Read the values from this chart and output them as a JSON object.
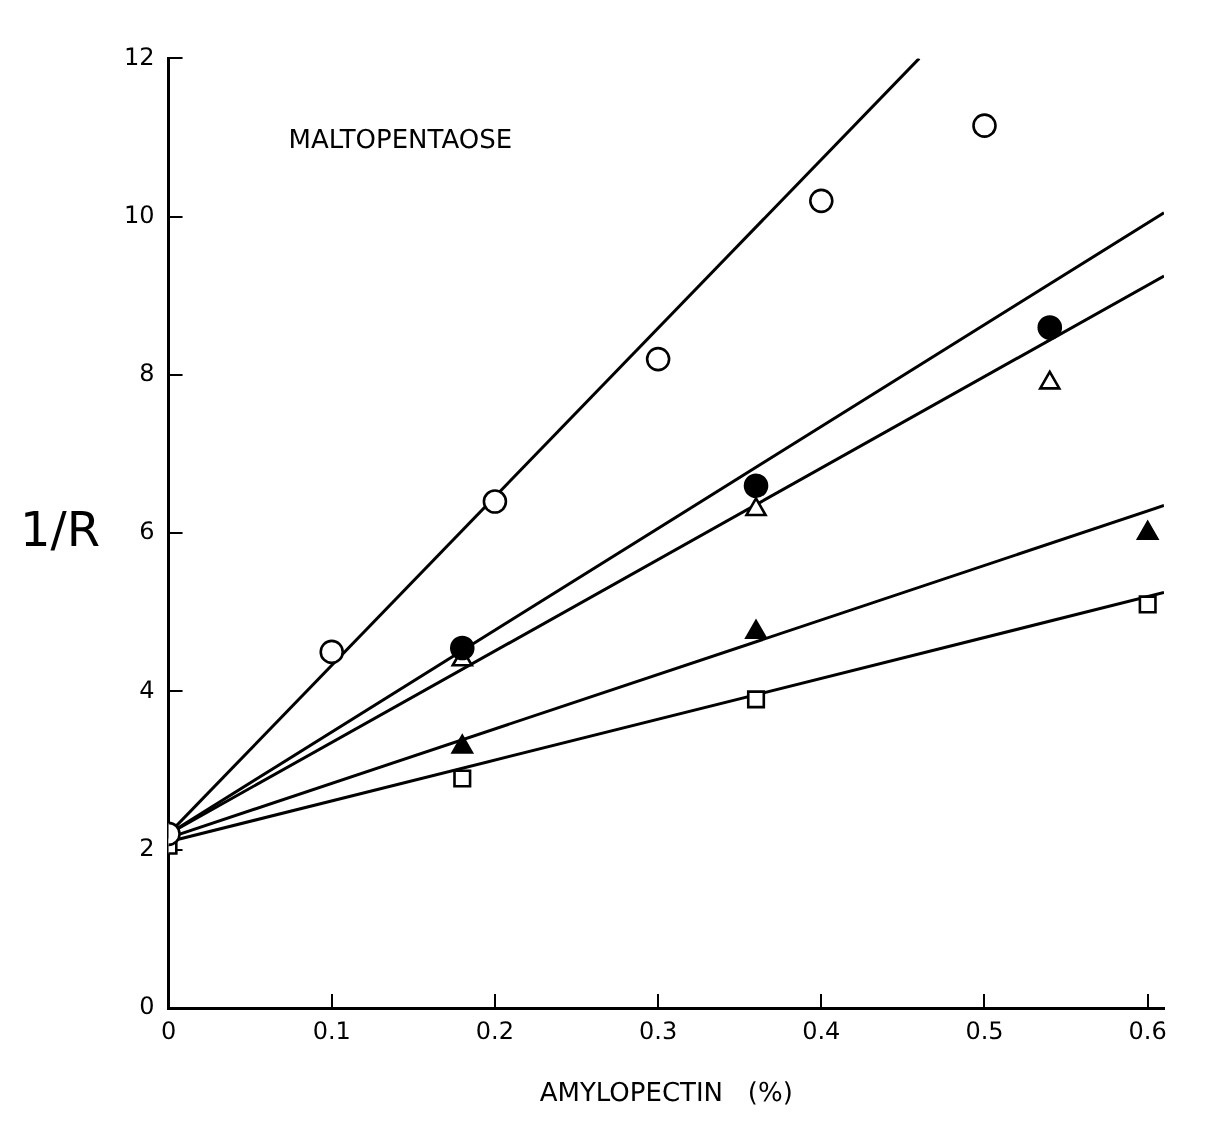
{
  "chart_data": {
    "type": "scatter",
    "xlabel": "AMYLOPECTIN   (%)",
    "ylabel": "1/R",
    "annotations": [
      "MALTOPENTAOSE"
    ],
    "xlim": [
      0,
      0.61
    ],
    "xticks": [
      0,
      0.1,
      0.2,
      0.3,
      0.4,
      0.5,
      0.6
    ],
    "ylim": [
      0,
      12
    ],
    "yticks": [
      0,
      2,
      4,
      6,
      8,
      10,
      12
    ],
    "grid": false,
    "legend": false,
    "series": [
      {
        "type": "scatter",
        "marker": "circle",
        "color": "#ffffff",
        "x": [
          0,
          0.1,
          0.2,
          0.3,
          0.4,
          0.5
        ],
        "values": [
          2.2,
          4.5,
          6.4,
          8.2,
          10.2,
          11.15
        ]
      },
      {
        "type": "scatter",
        "marker": "circle",
        "color": "#000000",
        "x": [
          0.18,
          0.36,
          0.54
        ],
        "values": [
          4.55,
          6.6,
          8.6
        ]
      },
      {
        "type": "scatter",
        "marker": "triangle",
        "color": "#ffffff",
        "x": [
          0.18,
          0.36,
          0.54
        ],
        "values": [
          4.4,
          6.3,
          7.9
        ]
      },
      {
        "type": "scatter",
        "marker": "triangle",
        "color": "#000000",
        "x": [
          0.18,
          0.36,
          0.6
        ],
        "values": [
          3.3,
          4.75,
          6.0
        ]
      },
      {
        "type": "scatter",
        "marker": "square",
        "color": "#ffffff",
        "x": [
          0,
          0.18,
          0.36,
          0.6
        ],
        "values": [
          2.05,
          2.9,
          3.9,
          5.1
        ]
      },
      {
        "type": "line",
        "marker": "none",
        "color": "#000000",
        "x": [
          0,
          0.46
        ],
        "values": [
          2.2,
          12
        ]
      },
      {
        "type": "line",
        "marker": "none",
        "color": "#000000",
        "x": [
          0,
          0.61
        ],
        "values": [
          2.2,
          10.05
        ]
      },
      {
        "type": "line",
        "marker": "none",
        "color": "#000000",
        "x": [
          0,
          0.61
        ],
        "values": [
          2.2,
          9.25
        ]
      },
      {
        "type": "line",
        "marker": "none",
        "color": "#000000",
        "x": [
          0,
          0.61
        ],
        "values": [
          2.15,
          6.35
        ]
      },
      {
        "type": "line",
        "marker": "none",
        "color": "#000000",
        "x": [
          0,
          0.61
        ],
        "values": [
          2.1,
          5.25
        ]
      }
    ]
  }
}
